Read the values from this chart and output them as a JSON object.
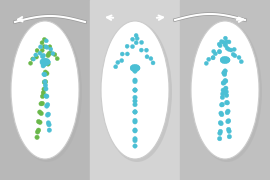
{
  "bg_left": "#b8b8b8",
  "bg_center": "#d4d4d4",
  "bg_right": "#c0c0c0",
  "oval_fc": "white",
  "oval_ec": "#e0e0e0",
  "cyan": "#4bbfd4",
  "green": "#6ab84a",
  "arrow_color": "white",
  "figsize": [
    2.7,
    1.8
  ],
  "dpi": 100
}
